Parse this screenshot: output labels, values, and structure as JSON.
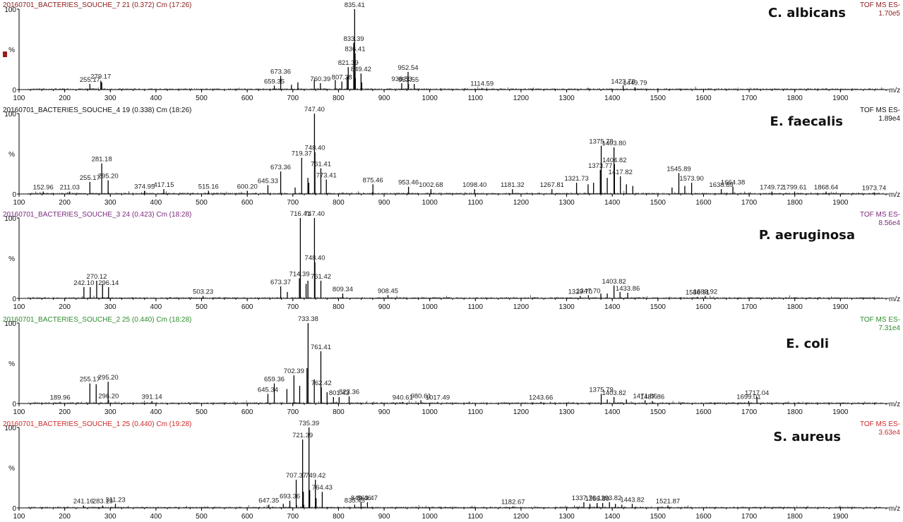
{
  "chart_data": [
    {
      "type": "spectrum",
      "title": "20160701_BACTERIES_SOUCHE_7 21 (0.372) Cm (17:26)",
      "scan_mode": "TOF MS ES-",
      "intensity": "1.70e5",
      "organism": "C. albicans",
      "header_color": "#8B1A1A",
      "xlabel": "m/z",
      "xlim": [
        100,
        2000
      ],
      "ylim": [
        0,
        100
      ],
      "y_ticks": [
        "100",
        "%",
        "0"
      ],
      "x_ticks": [
        100,
        200,
        300,
        400,
        500,
        600,
        700,
        800,
        900,
        1000,
        1100,
        1200,
        1300,
        1400,
        1500,
        1600,
        1700,
        1800,
        1900
      ],
      "peaks": [
        {
          "mz": 255.17,
          "intensity": 7,
          "label": "255.17"
        },
        {
          "mz": 279.17,
          "intensity": 11,
          "label": "279.17"
        },
        {
          "mz": 659.35,
          "intensity": 5,
          "label": "659.35"
        },
        {
          "mz": 673.36,
          "intensity": 17,
          "label": "673.36"
        },
        {
          "mz": 760.39,
          "intensity": 8,
          "label": "760.39"
        },
        {
          "mz": 807.38,
          "intensity": 10,
          "label": "807.38"
        },
        {
          "mz": 821.39,
          "intensity": 28,
          "label": "821.39"
        },
        {
          "mz": 833.39,
          "intensity": 58,
          "label": "833.39"
        },
        {
          "mz": 835.41,
          "intensity": 100,
          "label": "835.41"
        },
        {
          "mz": 836.41,
          "intensity": 45,
          "label": "836.41"
        },
        {
          "mz": 849.42,
          "intensity": 20,
          "label": "849.42"
        },
        {
          "mz": 938.53,
          "intensity": 8,
          "label": "938.53"
        },
        {
          "mz": 952.54,
          "intensity": 22,
          "label": "952.54"
        },
        {
          "mz": 953.55,
          "intensity": 7,
          "label": "953.55"
        },
        {
          "mz": 1114.59,
          "intensity": 2,
          "label": "1114.59"
        },
        {
          "mz": 1423.78,
          "intensity": 5,
          "label": "1423.78"
        },
        {
          "mz": 1449.79,
          "intensity": 3,
          "label": "1449.79"
        },
        {
          "mz": 281.18,
          "intensity": 9
        },
        {
          "mz": 697,
          "intensity": 6
        },
        {
          "mz": 711,
          "intensity": 9
        },
        {
          "mz": 747,
          "intensity": 12
        },
        {
          "mz": 793,
          "intensity": 12
        },
        {
          "mz": 819,
          "intensity": 16
        },
        {
          "mz": 837,
          "intensity": 14
        },
        {
          "mz": 851,
          "intensity": 9
        },
        {
          "mz": 966,
          "intensity": 7
        }
      ]
    },
    {
      "type": "spectrum",
      "title": "20160701_BACTERIES_SOUCHE_4 19 (0.338) Cm (18:26)",
      "scan_mode": "TOF MS ES-",
      "intensity": "1.89e4",
      "organism": "E. faecalis",
      "header_color": "#111111",
      "xlabel": "m/z",
      "xlim": [
        100,
        2000
      ],
      "ylim": [
        0,
        100
      ],
      "y_ticks": [
        "100",
        "%",
        "0"
      ],
      "x_ticks": [
        100,
        200,
        300,
        400,
        500,
        600,
        700,
        800,
        900,
        1000,
        1100,
        1200,
        1300,
        1400,
        1500,
        1600,
        1700,
        1800,
        1900
      ],
      "peaks": [
        {
          "mz": 152.96,
          "intensity": 3,
          "label": "152.96"
        },
        {
          "mz": 211.03,
          "intensity": 3,
          "label": "211.03"
        },
        {
          "mz": 255.17,
          "intensity": 15,
          "label": "255.17"
        },
        {
          "mz": 281.18,
          "intensity": 38,
          "label": "281.18"
        },
        {
          "mz": 295.2,
          "intensity": 17,
          "label": "295.20"
        },
        {
          "mz": 374.95,
          "intensity": 4,
          "label": "374.95"
        },
        {
          "mz": 417.15,
          "intensity": 6,
          "label": "417.15"
        },
        {
          "mz": 515.16,
          "intensity": 4,
          "label": "515.16"
        },
        {
          "mz": 600.2,
          "intensity": 4,
          "label": "600.20"
        },
        {
          "mz": 645.33,
          "intensity": 11,
          "label": "645.33"
        },
        {
          "mz": 673.36,
          "intensity": 28,
          "label": "673.36"
        },
        {
          "mz": 719.37,
          "intensity": 45,
          "label": "719.37"
        },
        {
          "mz": 747.4,
          "intensity": 100,
          "label": "747.40"
        },
        {
          "mz": 748.4,
          "intensity": 52,
          "label": "748.40"
        },
        {
          "mz": 761.41,
          "intensity": 32,
          "label": "761.41"
        },
        {
          "mz": 773.41,
          "intensity": 18,
          "label": "773.41"
        },
        {
          "mz": 875.46,
          "intensity": 12,
          "label": "875.46"
        },
        {
          "mz": 953.46,
          "intensity": 9,
          "label": "953.46"
        },
        {
          "mz": 1002.68,
          "intensity": 6,
          "label": "1002.68"
        },
        {
          "mz": 1098.4,
          "intensity": 6,
          "label": "1098.40"
        },
        {
          "mz": 1181.32,
          "intensity": 6,
          "label": "1181.32"
        },
        {
          "mz": 1267.81,
          "intensity": 6,
          "label": "1267.81"
        },
        {
          "mz": 1321.73,
          "intensity": 14,
          "label": "1321.73"
        },
        {
          "mz": 1373.77,
          "intensity": 30,
          "label": "1373.77"
        },
        {
          "mz": 1375.78,
          "intensity": 60,
          "label": "1375.78"
        },
        {
          "mz": 1403.8,
          "intensity": 58,
          "label": "1403.80"
        },
        {
          "mz": 1404.82,
          "intensity": 37,
          "label": "1404.82"
        },
        {
          "mz": 1417.82,
          "intensity": 22,
          "label": "1417.82"
        },
        {
          "mz": 1545.89,
          "intensity": 26,
          "label": "1545.89"
        },
        {
          "mz": 1573.9,
          "intensity": 14,
          "label": "1573.90"
        },
        {
          "mz": 1638.89,
          "intensity": 6,
          "label": "1638.89"
        },
        {
          "mz": 1664.38,
          "intensity": 9,
          "label": "1664.38"
        },
        {
          "mz": 1749.72,
          "intensity": 3,
          "label": "1749.72"
        },
        {
          "mz": 1799.61,
          "intensity": 3,
          "label": "1799.61"
        },
        {
          "mz": 1868.64,
          "intensity": 3,
          "label": "1868.64"
        },
        {
          "mz": 1973.74,
          "intensity": 2,
          "label": "1973.74"
        },
        {
          "mz": 705,
          "intensity": 8
        },
        {
          "mz": 733,
          "intensity": 20
        },
        {
          "mz": 735,
          "intensity": 14
        },
        {
          "mz": 1347,
          "intensity": 12
        },
        {
          "mz": 1359,
          "intensity": 14
        },
        {
          "mz": 1389,
          "intensity": 20
        },
        {
          "mz": 1431,
          "intensity": 12
        },
        {
          "mz": 1445,
          "intensity": 10
        },
        {
          "mz": 1531,
          "intensity": 8
        },
        {
          "mz": 1559,
          "intensity": 10
        }
      ]
    },
    {
      "type": "spectrum",
      "title": "20160701_BACTERIES_SOUCHE_3 24 (0.423) Cm (18:28)",
      "scan_mode": "TOF MS ES-",
      "intensity": "8.56e4",
      "organism": "P. aeruginosa",
      "header_color": "#7B2A7B",
      "xlabel": "m/z",
      "xlim": [
        100,
        2000
      ],
      "ylim": [
        0,
        100
      ],
      "y_ticks": [
        "100",
        "%",
        "0"
      ],
      "x_ticks": [
        100,
        200,
        300,
        400,
        500,
        600,
        700,
        800,
        900,
        1000,
        1100,
        1200,
        1300,
        1400,
        1500,
        1600,
        1700,
        1800,
        1900
      ],
      "peaks": [
        {
          "mz": 242.1,
          "intensity": 14,
          "label": "242.10"
        },
        {
          "mz": 270.12,
          "intensity": 22,
          "label": "270.12"
        },
        {
          "mz": 296.14,
          "intensity": 14,
          "label": "296.14"
        },
        {
          "mz": 503.23,
          "intensity": 3,
          "label": "503.23"
        },
        {
          "mz": 673.37,
          "intensity": 15,
          "label": "673.37"
        },
        {
          "mz": 714.39,
          "intensity": 25,
          "label": "714.39"
        },
        {
          "mz": 716.41,
          "intensity": 100,
          "label": "716.41"
        },
        {
          "mz": 747.4,
          "intensity": 100,
          "label": "747.40"
        },
        {
          "mz": 748.4,
          "intensity": 45,
          "label": "748.40"
        },
        {
          "mz": 761.42,
          "intensity": 22,
          "label": "761.42"
        },
        {
          "mz": 809.34,
          "intensity": 6,
          "label": "809.34"
        },
        {
          "mz": 908.45,
          "intensity": 4,
          "label": "908.45"
        },
        {
          "mz": 1329.7,
          "intensity": 3,
          "label": "1329.70"
        },
        {
          "mz": 1347.7,
          "intensity": 4,
          "label": "1347.70"
        },
        {
          "mz": 1403.82,
          "intensity": 16,
          "label": "1403.82"
        },
        {
          "mz": 1433.86,
          "intensity": 7,
          "label": "1433.86"
        },
        {
          "mz": 1586.91,
          "intensity": 2,
          "label": "1586.91"
        },
        {
          "mz": 1603.92,
          "intensity": 3,
          "label": "1603.92"
        },
        {
          "mz": 256,
          "intensity": 14
        },
        {
          "mz": 283,
          "intensity": 18
        },
        {
          "mz": 688,
          "intensity": 8
        },
        {
          "mz": 729,
          "intensity": 18
        },
        {
          "mz": 733,
          "intensity": 22
        },
        {
          "mz": 1375,
          "intensity": 6
        },
        {
          "mz": 1389,
          "intensity": 6
        },
        {
          "mz": 1417,
          "intensity": 8
        }
      ]
    },
    {
      "type": "spectrum",
      "title": "20160701_BACTERIES_SOUCHE_2 25 (0.440) Cm (18:28)",
      "scan_mode": "TOF MS ES-",
      "intensity": "7.31e4",
      "organism": "E. coli",
      "header_color": "#2E8B2E",
      "xlabel": "m/z",
      "xlim": [
        100,
        2000
      ],
      "ylim": [
        0,
        100
      ],
      "y_ticks": [
        "100",
        "%",
        "0"
      ],
      "x_ticks": [
        100,
        200,
        300,
        400,
        500,
        600,
        700,
        800,
        900,
        1000,
        1100,
        1200,
        1300,
        1400,
        1500,
        1600,
        1700,
        1800,
        1900
      ],
      "peaks": [
        {
          "mz": 189.96,
          "intensity": 2,
          "label": "189.96"
        },
        {
          "mz": 255.17,
          "intensity": 25,
          "label": "255.17"
        },
        {
          "mz": 295.2,
          "intensity": 27,
          "label": "295.20"
        },
        {
          "mz": 296.2,
          "intensity": 4,
          "label": "296.20"
        },
        {
          "mz": 391.14,
          "intensity": 3,
          "label": "391.14"
        },
        {
          "mz": 645.34,
          "intensity": 12,
          "label": "645.34"
        },
        {
          "mz": 659.36,
          "intensity": 25,
          "label": "659.36"
        },
        {
          "mz": 702.39,
          "intensity": 35,
          "label": "702.39"
        },
        {
          "mz": 733.38,
          "intensity": 100,
          "label": "733.38"
        },
        {
          "mz": 761.41,
          "intensity": 65,
          "label": "761.41"
        },
        {
          "mz": 762.42,
          "intensity": 20,
          "label": "762.42"
        },
        {
          "mz": 801.43,
          "intensity": 8,
          "label": "801.43"
        },
        {
          "mz": 823.36,
          "intensity": 9,
          "label": "823.36"
        },
        {
          "mz": 940.61,
          "intensity": 2,
          "label": "940.61"
        },
        {
          "mz": 980.61,
          "intensity": 4,
          "label": "980.61"
        },
        {
          "mz": 1017.49,
          "intensity": 2,
          "label": "1017.49"
        },
        {
          "mz": 1243.66,
          "intensity": 2,
          "label": "1243.66"
        },
        {
          "mz": 1375.79,
          "intensity": 12,
          "label": "1375.79"
        },
        {
          "mz": 1403.82,
          "intensity": 8,
          "label": "1403.82"
        },
        {
          "mz": 1471.86,
          "intensity": 4,
          "label": "1471.86"
        },
        {
          "mz": 1487.86,
          "intensity": 3,
          "label": "1487.86"
        },
        {
          "mz": 1699.01,
          "intensity": 3,
          "label": "1699.01"
        },
        {
          "mz": 1717.04,
          "intensity": 8,
          "label": "1717.04"
        },
        {
          "mz": 269,
          "intensity": 24
        },
        {
          "mz": 687,
          "intensity": 18
        },
        {
          "mz": 715,
          "intensity": 22
        },
        {
          "mz": 731,
          "intensity": 44
        },
        {
          "mz": 747,
          "intensity": 30
        },
        {
          "mz": 775,
          "intensity": 14
        },
        {
          "mz": 789,
          "intensity": 8
        },
        {
          "mz": 1389,
          "intensity": 5
        },
        {
          "mz": 1431,
          "intensity": 5
        }
      ]
    },
    {
      "type": "spectrum",
      "title": "20160701_BACTERIES_SOUCHE_1 25 (0.440) Cm (19:28)",
      "scan_mode": "TOF MS ES-",
      "intensity": "3.63e4",
      "organism": "S. aureus",
      "header_color": "#CC2A2A",
      "xlabel": "m/z",
      "xlim": [
        100,
        2000
      ],
      "ylim": [
        0,
        100
      ],
      "y_ticks": [
        "100",
        "%",
        "0"
      ],
      "x_ticks": [
        100,
        200,
        300,
        400,
        500,
        600,
        700,
        800,
        900,
        1000,
        1100,
        1200,
        1300,
        1400,
        1500,
        1600,
        1700,
        1800,
        1900
      ],
      "peaks": [
        {
          "mz": 241.16,
          "intensity": 3,
          "label": "241.16"
        },
        {
          "mz": 283.19,
          "intensity": 3,
          "label": "283.19"
        },
        {
          "mz": 311.23,
          "intensity": 5,
          "label": "311.23"
        },
        {
          "mz": 647.35,
          "intensity": 4,
          "label": "647.35"
        },
        {
          "mz": 693.36,
          "intensity": 9,
          "label": "693.36"
        },
        {
          "mz": 707.37,
          "intensity": 35,
          "label": "707.37"
        },
        {
          "mz": 721.39,
          "intensity": 85,
          "label": "721.39"
        },
        {
          "mz": 735.39,
          "intensity": 100,
          "label": "735.39"
        },
        {
          "mz": 749.42,
          "intensity": 35,
          "label": "749.42"
        },
        {
          "mz": 764.43,
          "intensity": 20,
          "label": "764.43"
        },
        {
          "mz": 835.45,
          "intensity": 4,
          "label": "835.45"
        },
        {
          "mz": 849.46,
          "intensity": 7,
          "label": "849.46"
        },
        {
          "mz": 863.47,
          "intensity": 7,
          "label": "863.47"
        },
        {
          "mz": 1182.67,
          "intensity": 2,
          "label": "1182.67"
        },
        {
          "mz": 1337.76,
          "intensity": 7,
          "label": "1337.76"
        },
        {
          "mz": 1366.8,
          "intensity": 6,
          "label": "1366.80"
        },
        {
          "mz": 1393.82,
          "intensity": 7,
          "label": "1393.82"
        },
        {
          "mz": 1443.82,
          "intensity": 5,
          "label": "1443.82"
        },
        {
          "mz": 1521.87,
          "intensity": 3,
          "label": "1521.87"
        },
        {
          "mz": 679,
          "intensity": 5
        },
        {
          "mz": 723,
          "intensity": 20
        },
        {
          "mz": 737,
          "intensity": 22
        },
        {
          "mz": 751,
          "intensity": 12
        },
        {
          "mz": 1351,
          "intensity": 5
        },
        {
          "mz": 1379,
          "intensity": 6
        },
        {
          "mz": 1407,
          "intensity": 5
        },
        {
          "mz": 1421,
          "intensity": 4
        }
      ]
    }
  ]
}
